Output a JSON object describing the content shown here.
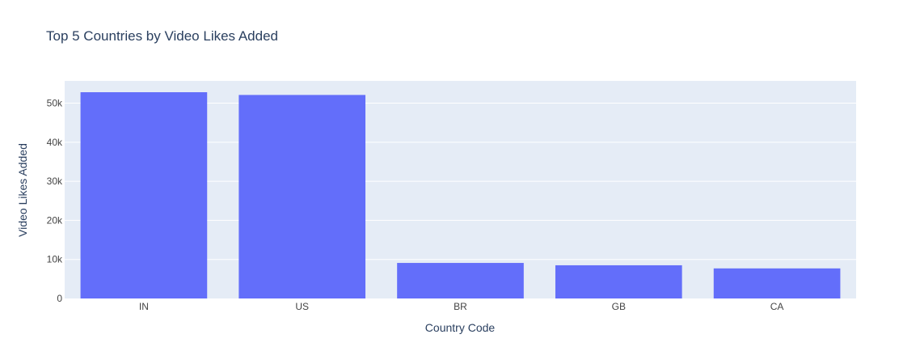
{
  "chart_data": {
    "type": "bar",
    "title": "Top 5 Countries by Video Likes Added",
    "xlabel": "Country Code",
    "ylabel": "Video Likes Added",
    "categories": [
      "IN",
      "US",
      "BR",
      "GB",
      "CA"
    ],
    "values": [
      52800,
      52100,
      9100,
      8500,
      7700
    ],
    "ylim": [
      0,
      55700
    ],
    "yticks": [
      0,
      10000,
      20000,
      30000,
      40000,
      50000
    ],
    "ytick_labels": [
      "0",
      "10k",
      "20k",
      "30k",
      "40k",
      "50k"
    ],
    "grid": true,
    "legend": "none",
    "colors": {
      "bar": "#636efa",
      "plot_bg": "#e5ecf6",
      "grid": "#ffffff"
    }
  }
}
